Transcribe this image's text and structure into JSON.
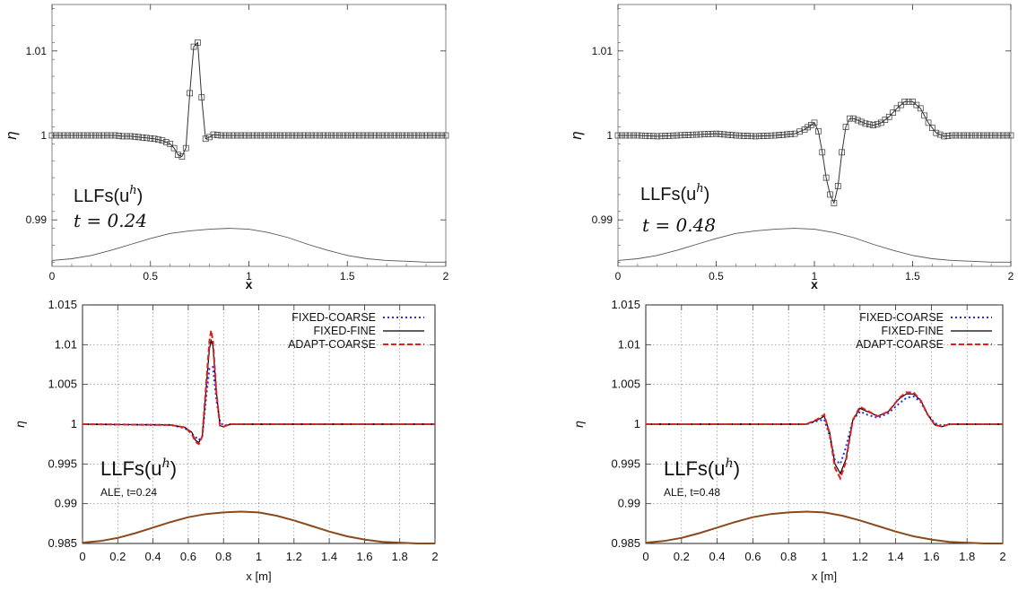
{
  "chart_data": [
    {
      "type": "line",
      "panel": "top-left",
      "ylabel": "η",
      "xlabel": "x",
      "xlim": [
        0,
        2
      ],
      "ylim": [
        0.9845,
        1.0155
      ],
      "x_ticks": [
        "0",
        "0.5",
        "1",
        "1.5",
        "2"
      ],
      "y_ticks": [
        "0.99",
        "1",
        "1.01"
      ],
      "y_tick_values": [
        0.99,
        1.0,
        1.01
      ],
      "annotation": "LLFs(u",
      "annotation_sup": "h",
      "annotation_close": ")",
      "time_label": "t = 0.24",
      "grid": false,
      "series": [
        {
          "kind": "markers-line",
          "x": [
            0,
            0.04,
            0.08,
            0.12,
            0.16,
            0.2,
            0.24,
            0.28,
            0.32,
            0.36,
            0.4,
            0.44,
            0.48,
            0.52,
            0.56,
            0.6,
            0.62,
            0.64,
            0.66,
            0.68,
            0.7,
            0.72,
            0.74,
            0.76,
            0.78,
            0.8,
            0.82,
            0.86,
            0.9,
            1.0,
            1.2,
            1.4,
            1.6,
            1.8,
            2.0
          ],
          "y": [
            1.0,
            1.0,
            1.0,
            1.0,
            1.0,
            1.0,
            1.0,
            1.0,
            1.0,
            0.9999,
            0.9999,
            0.9998,
            0.9997,
            0.9996,
            0.9994,
            0.999,
            0.9985,
            0.9977,
            0.9975,
            0.9985,
            1.005,
            1.0105,
            1.011,
            1.0045,
            0.9996,
            0.9998,
            1.0001,
            1.0,
            1.0,
            1.0,
            1.0,
            1.0,
            1.0,
            1.0,
            1.0
          ]
        },
        {
          "kind": "bottom",
          "x": [
            0,
            0.1,
            0.2,
            0.3,
            0.4,
            0.5,
            0.6,
            0.7,
            0.8,
            0.9,
            1.0,
            1.1,
            1.2,
            1.3,
            1.4,
            1.5,
            1.6,
            1.7,
            1.8,
            1.9,
            2.0
          ],
          "y": [
            0.9852,
            0.9854,
            0.9858,
            0.9864,
            0.9871,
            0.9878,
            0.9884,
            0.9887,
            0.9889,
            0.989,
            0.9889,
            0.9885,
            0.9879,
            0.9871,
            0.9864,
            0.9858,
            0.9854,
            0.9852,
            0.9851,
            0.985,
            0.985
          ]
        }
      ]
    },
    {
      "type": "line",
      "panel": "top-right",
      "ylabel": "η",
      "xlabel": "x",
      "xlim": [
        0,
        2
      ],
      "ylim": [
        0.9845,
        1.0155
      ],
      "x_ticks": [
        "0",
        "0.5",
        "1",
        "1.5",
        "2"
      ],
      "y_ticks": [
        "0.99",
        "1",
        "1.01"
      ],
      "y_tick_values": [
        0.99,
        1.0,
        1.01
      ],
      "annotation": "LLFs(u",
      "annotation_sup": "h",
      "annotation_close": ")",
      "time_label": "t = 0.48",
      "grid": false,
      "series": [
        {
          "kind": "markers-line",
          "x": [
            0,
            0.1,
            0.2,
            0.3,
            0.4,
            0.5,
            0.6,
            0.7,
            0.8,
            0.9,
            0.95,
            1.0,
            1.02,
            1.04,
            1.06,
            1.08,
            1.1,
            1.12,
            1.14,
            1.16,
            1.18,
            1.2,
            1.22,
            1.26,
            1.3,
            1.34,
            1.38,
            1.42,
            1.46,
            1.5,
            1.54,
            1.58,
            1.62,
            1.66,
            1.7,
            1.8,
            1.9,
            2.0
          ],
          "y": [
            1.0,
            1.0,
            0.9999,
            1.0,
            1.0001,
            1.0002,
            1.0,
            0.9999,
            1.0,
            1.0002,
            1.0007,
            1.0015,
            1.0005,
            0.998,
            0.995,
            0.993,
            0.992,
            0.994,
            0.998,
            1.001,
            1.002,
            1.002,
            1.0018,
            1.0014,
            1.0012,
            1.0015,
            1.0022,
            1.0032,
            1.004,
            1.004,
            1.0032,
            1.0015,
            1.0003,
            0.9999,
            1.0,
            1.0,
            1.0,
            1.0
          ]
        },
        {
          "kind": "bottom",
          "x": [
            0,
            0.1,
            0.2,
            0.3,
            0.4,
            0.5,
            0.6,
            0.7,
            0.8,
            0.9,
            1.0,
            1.1,
            1.2,
            1.3,
            1.4,
            1.5,
            1.6,
            1.7,
            1.8,
            1.9,
            2.0
          ],
          "y": [
            0.9852,
            0.9854,
            0.9858,
            0.9864,
            0.9871,
            0.9878,
            0.9884,
            0.9887,
            0.9889,
            0.989,
            0.9889,
            0.9885,
            0.9879,
            0.9871,
            0.9864,
            0.9858,
            0.9854,
            0.9852,
            0.9851,
            0.985,
            0.985
          ]
        }
      ]
    },
    {
      "type": "line",
      "panel": "bottom-left",
      "ylabel": "η",
      "xlabel": "x [m]",
      "xlim": [
        0,
        2
      ],
      "ylim": [
        0.985,
        1.015
      ],
      "x_ticks": [
        "0",
        "0.2",
        "0.4",
        "0.6",
        "0.8",
        "1",
        "1.2",
        "1.4",
        "1.6",
        "1.8",
        "2"
      ],
      "y_ticks": [
        "0.985",
        "0.99",
        "0.995",
        "1",
        "1.005",
        "1.01",
        "1.015"
      ],
      "y_tick_values": [
        0.985,
        0.99,
        0.995,
        1.0,
        1.005,
        1.01,
        1.015
      ],
      "grid": true,
      "legend_position": "top-right",
      "annotation": "LLFs(u",
      "annotation_sup": "h",
      "annotation_close": ")",
      "time_label": "ALE, t=0.24",
      "series": [
        {
          "name": "FIXED-COARSE",
          "color": "#2b2bdc",
          "style": "dotted",
          "x": [
            0,
            0.5,
            0.58,
            0.62,
            0.66,
            0.68,
            0.7,
            0.72,
            0.74,
            0.76,
            0.78,
            0.8,
            0.84,
            1.0,
            2.0
          ],
          "y": [
            1.0,
            0.9999,
            0.9995,
            0.9988,
            0.998,
            0.9985,
            1.003,
            1.007,
            1.0072,
            1.003,
            1.0003,
            0.9998,
            1.0,
            1.0,
            1.0
          ]
        },
        {
          "name": "FIXED-FINE",
          "color": "#000000",
          "style": "solid",
          "x": [
            0,
            0.5,
            0.58,
            0.62,
            0.64,
            0.66,
            0.68,
            0.7,
            0.72,
            0.73,
            0.74,
            0.76,
            0.78,
            0.8,
            0.84,
            1.0,
            2.0
          ],
          "y": [
            1.0,
            0.9999,
            0.9996,
            0.999,
            0.998,
            0.9977,
            0.9985,
            1.004,
            1.0095,
            1.0105,
            1.0098,
            1.004,
            0.9998,
            0.9997,
            1.0,
            1.0,
            1.0
          ]
        },
        {
          "name": "ADAPT-COARSE",
          "color": "#e0201b",
          "style": "dashed",
          "x": [
            0,
            0.5,
            0.58,
            0.62,
            0.64,
            0.66,
            0.68,
            0.7,
            0.72,
            0.73,
            0.74,
            0.76,
            0.78,
            0.8,
            0.84,
            1.0,
            2.0
          ],
          "y": [
            1.0,
            0.9999,
            0.9996,
            0.9988,
            0.9978,
            0.9975,
            0.9985,
            1.0045,
            1.0105,
            1.0118,
            1.0105,
            1.004,
            0.9997,
            0.9997,
            1.0,
            1.0,
            1.0
          ]
        },
        {
          "kind": "bottom",
          "color": "#8b4a1c",
          "x": [
            0,
            0.1,
            0.2,
            0.3,
            0.4,
            0.5,
            0.6,
            0.7,
            0.8,
            0.9,
            1.0,
            1.1,
            1.2,
            1.3,
            1.4,
            1.5,
            1.6,
            1.7,
            1.8,
            1.9,
            2.0
          ],
          "y": [
            0.9851,
            0.9853,
            0.9857,
            0.9863,
            0.987,
            0.9877,
            0.9883,
            0.9887,
            0.9889,
            0.989,
            0.9889,
            0.9885,
            0.9879,
            0.9872,
            0.9865,
            0.9859,
            0.9855,
            0.9852,
            0.9851,
            0.985,
            0.985
          ]
        }
      ]
    },
    {
      "type": "line",
      "panel": "bottom-right",
      "ylabel": "η",
      "xlabel": "x [m]",
      "xlim": [
        0,
        2
      ],
      "ylim": [
        0.985,
        1.015
      ],
      "x_ticks": [
        "0",
        "0.2",
        "0.4",
        "0.6",
        "0.8",
        "1",
        "1.2",
        "1.4",
        "1.6",
        "1.8",
        "2"
      ],
      "y_ticks": [
        "0.985",
        "0.99",
        "0.995",
        "1",
        "1.005",
        "1.01",
        "1.015"
      ],
      "y_tick_values": [
        0.985,
        0.99,
        0.995,
        1.0,
        1.005,
        1.01,
        1.015
      ],
      "grid": true,
      "legend_position": "top-right",
      "annotation": "LLFs(u",
      "annotation_sup": "h",
      "annotation_close": ")",
      "time_label": "ALE, t=0.48",
      "series": [
        {
          "name": "FIXED-COARSE",
          "color": "#2b2bdc",
          "style": "dotted",
          "x": [
            0,
            0.9,
            0.96,
            1.0,
            1.03,
            1.06,
            1.09,
            1.12,
            1.16,
            1.2,
            1.24,
            1.3,
            1.36,
            1.42,
            1.46,
            1.5,
            1.54,
            1.58,
            1.62,
            1.66,
            1.7,
            2.0
          ],
          "y": [
            1.0,
            1.0,
            1.0004,
            1.0006,
            0.9985,
            0.9955,
            0.995,
            0.997,
            1.0005,
            1.0016,
            1.0012,
            1.0008,
            1.0014,
            1.0026,
            1.0033,
            1.0035,
            1.0028,
            1.0012,
            1.0001,
            0.9998,
            1.0,
            1.0
          ]
        },
        {
          "name": "FIXED-FINE",
          "color": "#000000",
          "style": "solid",
          "x": [
            0,
            0.9,
            0.96,
            1.0,
            1.03,
            1.06,
            1.09,
            1.12,
            1.16,
            1.2,
            1.24,
            1.3,
            1.36,
            1.42,
            1.46,
            1.5,
            1.54,
            1.58,
            1.62,
            1.66,
            1.7,
            2.0
          ],
          "y": [
            1.0,
            1.0,
            1.0005,
            1.001,
            0.999,
            0.995,
            0.9938,
            0.9955,
            1.0005,
            1.002,
            1.0016,
            1.001,
            1.0016,
            1.0032,
            1.0038,
            1.0038,
            1.003,
            1.0012,
            0.9999,
            0.9997,
            1.0,
            1.0
          ]
        },
        {
          "name": "ADAPT-COARSE",
          "color": "#e0201b",
          "style": "dashed",
          "x": [
            0,
            0.9,
            0.96,
            1.0,
            1.03,
            1.06,
            1.09,
            1.12,
            1.16,
            1.2,
            1.24,
            1.3,
            1.36,
            1.42,
            1.46,
            1.5,
            1.54,
            1.58,
            1.62,
            1.66,
            1.7,
            2.0
          ],
          "y": [
            1.0,
            1.0,
            1.0006,
            1.0012,
            0.9988,
            0.9945,
            0.9932,
            0.9952,
            1.0005,
            1.0022,
            1.0017,
            1.001,
            1.0016,
            1.0033,
            1.004,
            1.004,
            1.003,
            1.0012,
            0.9999,
            0.9997,
            1.0,
            1.0
          ]
        },
        {
          "kind": "bottom",
          "color": "#8b4a1c",
          "x": [
            0,
            0.1,
            0.2,
            0.3,
            0.4,
            0.5,
            0.6,
            0.7,
            0.8,
            0.9,
            1.0,
            1.1,
            1.2,
            1.3,
            1.4,
            1.5,
            1.6,
            1.7,
            1.8,
            1.9,
            2.0
          ],
          "y": [
            0.9851,
            0.9853,
            0.9857,
            0.9863,
            0.987,
            0.9877,
            0.9883,
            0.9887,
            0.9889,
            0.989,
            0.9889,
            0.9885,
            0.9879,
            0.9872,
            0.9865,
            0.9859,
            0.9855,
            0.9852,
            0.9851,
            0.985,
            0.985
          ]
        }
      ]
    }
  ]
}
